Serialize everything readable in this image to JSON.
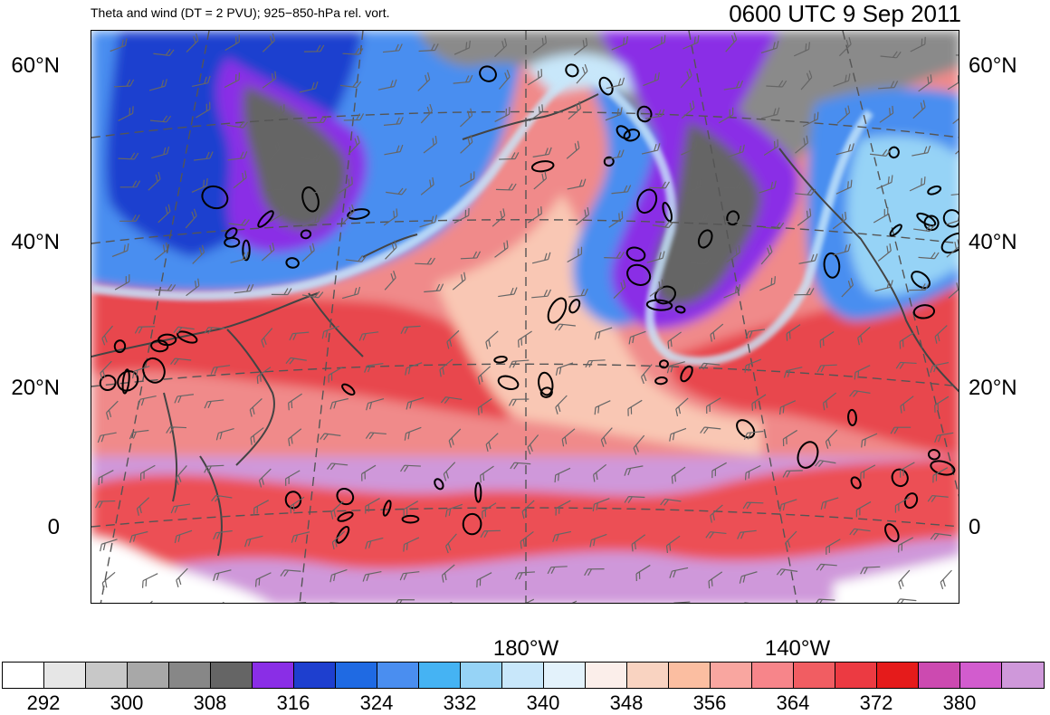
{
  "header": {
    "title_left": "Theta and wind (DT = 2 PVU); 925−850-hPa rel. vort.",
    "title_right": "0600 UTC 9 Sep 2011"
  },
  "map": {
    "lat_labels": [
      {
        "text": "60°N",
        "lat": 60
      },
      {
        "text": "40°N",
        "lat": 40
      },
      {
        "text": "20°N",
        "lat": 20
      },
      {
        "text": "0",
        "lat": 0
      }
    ],
    "lon_labels": [
      {
        "text": "180°W",
        "lon": -180
      },
      {
        "text": "140°W",
        "lon": -140
      }
    ]
  },
  "colorbar": {
    "colors": [
      "#ffffff",
      "#e6e6e6",
      "#c8c8c8",
      "#a8a8a8",
      "#878787",
      "#656565",
      "#8a2ee6",
      "#1e3fcf",
      "#1f6ae3",
      "#4a8ef0",
      "#45b3f3",
      "#96d3f6",
      "#c8e7fa",
      "#e3f2fb",
      "#fbeeea",
      "#f9d3c1",
      "#fbbea1",
      "#f9a6a0",
      "#f7858a",
      "#f15d62",
      "#ec3a42",
      "#e51b1b",
      "#cc4ab0",
      "#d25cce",
      "#cf98da"
    ],
    "labels": [
      "292",
      "300",
      "308",
      "316",
      "324",
      "332",
      "340",
      "348",
      "356",
      "364",
      "372",
      "380"
    ],
    "label_indices": [
      1,
      3,
      5,
      7,
      9,
      11,
      13,
      15,
      17,
      19,
      21,
      23
    ]
  },
  "colors": {
    "background": "#ffffff",
    "frame": "#000000",
    "coast": "#444444",
    "vorticity_contour": "#000000"
  }
}
